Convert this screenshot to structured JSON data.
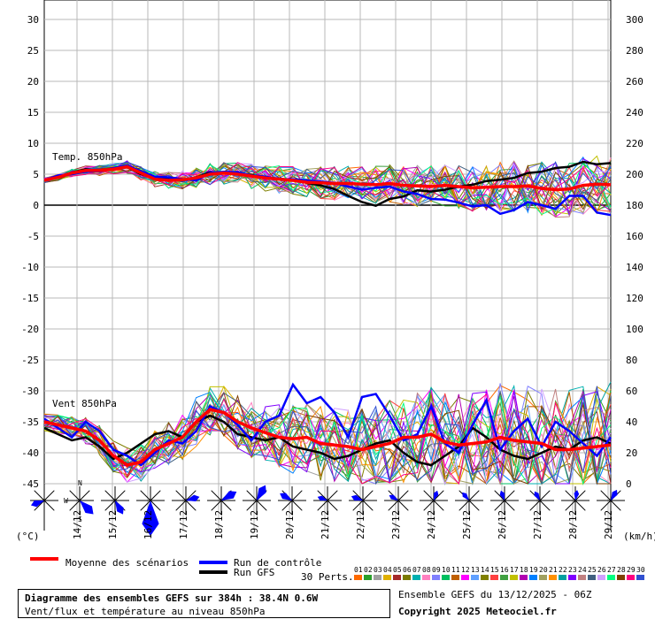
{
  "chart_data": {
    "type": "line",
    "title": "Diagramme des ensembles GEFS sur 384h : 38.4N 0.6W",
    "subtitle": "Vent/flux et température au niveau 850hPa",
    "y_left_unit": "(°C)",
    "y_right_unit": "(km/h)",
    "y_left_ticks": [
      30,
      25,
      20,
      15,
      10,
      5,
      0,
      -5,
      -10,
      -15,
      -20,
      -25,
      -30,
      -35,
      -40,
      -45
    ],
    "y_right_ticks": [
      300,
      280,
      260,
      240,
      220,
      200,
      180,
      160,
      140,
      120,
      100,
      80,
      60,
      40,
      20,
      0
    ],
    "ylim_left": [
      -45,
      30
    ],
    "ylim_right": [
      0,
      300
    ],
    "x_ticks": [
      "14/12",
      "15/12",
      "16/12",
      "17/12",
      "18/12",
      "19/12",
      "20/12",
      "21/12",
      "22/12",
      "23/12",
      "24/12",
      "25/12",
      "26/12",
      "27/12",
      "28/12",
      "29/12"
    ],
    "grid": true,
    "panel_labels": {
      "temp": "Temp. 850hPa",
      "wind": "Vent 850hPa"
    },
    "compass_labels": {
      "n": "N",
      "w": "W",
      "s": "S"
    },
    "series": [
      {
        "name": "Moyenne des scénarios",
        "role": "mean",
        "color": "#ff0000",
        "temp": [
          4.0,
          4.5,
          5.2,
          5.6,
          5.6,
          5.8,
          6.2,
          5.2,
          4.2,
          4.0,
          4.1,
          4.4,
          5.0,
          5.2,
          5.0,
          4.7,
          4.4,
          4.2,
          4.0,
          3.7,
          3.6,
          3.5,
          3.5,
          3.4,
          3.3,
          3.5,
          3.2,
          3.1,
          3.0,
          3.2,
          3.0,
          2.8,
          2.9,
          3.0,
          3.0,
          3.1,
          2.7,
          2.5,
          2.6,
          3.2,
          3.4,
          3.3
        ],
        "wind": [
          40,
          38,
          36,
          34,
          28,
          18,
          12,
          14,
          22,
          26,
          30,
          40,
          48,
          46,
          40,
          36,
          33,
          30,
          29,
          30,
          26,
          25,
          24,
          22,
          24,
          26,
          30,
          30,
          32,
          27,
          25,
          26,
          27,
          30,
          28,
          27,
          26,
          22,
          22,
          23,
          24,
          25
        ]
      },
      {
        "name": "Run de contrôle",
        "role": "control",
        "color": "#0000ff",
        "temp": [
          4.0,
          4.8,
          5.0,
          5.4,
          5.5,
          6.0,
          6.4,
          5.5,
          4.6,
          4.5,
          4.2,
          4.0,
          5.2,
          5.4,
          5.3,
          4.8,
          4.6,
          4.2,
          4.2,
          4.0,
          3.8,
          3.6,
          3.0,
          2.5,
          2.8,
          3.0,
          2.2,
          1.8,
          1.0,
          0.9,
          0.4,
          -0.2,
          0.0,
          -1.4,
          -0.8,
          0.5,
          0.0,
          -0.6,
          1.5,
          1.5,
          -1.2,
          -1.6
        ],
        "wind": [
          42,
          36,
          30,
          40,
          34,
          22,
          18,
          12,
          20,
          28,
          26,
          34,
          50,
          46,
          38,
          28,
          40,
          44,
          64,
          52,
          56,
          46,
          30,
          56,
          58,
          44,
          28,
          32,
          50,
          26,
          20,
          38,
          54,
          22,
          34,
          42,
          24,
          40,
          34,
          26,
          18,
          30
        ]
      },
      {
        "name": "Run GFS",
        "role": "gfs",
        "color": "#000000",
        "temp": [
          4.0,
          4.6,
          5.3,
          5.8,
          5.5,
          5.9,
          6.1,
          5.0,
          4.4,
          4.2,
          4.0,
          4.5,
          5.3,
          5.2,
          5.0,
          4.9,
          4.4,
          4.3,
          4.0,
          3.6,
          3.2,
          2.6,
          1.5,
          0.5,
          -0.1,
          1.0,
          1.4,
          2.4,
          2.2,
          2.5,
          3.0,
          3.3,
          3.9,
          4.1,
          4.4,
          5.2,
          5.4,
          6.0,
          6.2,
          7.0,
          6.6,
          6.8
        ],
        "wind": [
          36,
          32,
          28,
          30,
          24,
          16,
          20,
          26,
          32,
          34,
          30,
          40,
          44,
          40,
          32,
          30,
          28,
          30,
          24,
          22,
          20,
          16,
          18,
          22,
          26,
          28,
          20,
          14,
          12,
          18,
          24,
          36,
          30,
          22,
          18,
          16,
          20,
          24,
          22,
          28,
          30,
          26
        ]
      }
    ],
    "perturbations": {
      "label": "30 Perts.",
      "numbers": [
        "01",
        "02",
        "03",
        "04",
        "05",
        "06",
        "07",
        "08",
        "09",
        "10",
        "11",
        "12",
        "13",
        "14",
        "15",
        "16",
        "17",
        "18",
        "19",
        "20",
        "21",
        "22",
        "23",
        "24",
        "25",
        "26",
        "27",
        "28",
        "29",
        "30"
      ],
      "colors": [
        "#ff6a00",
        "#2aa02a",
        "#a0a0a0",
        "#e0b000",
        "#a52a2a",
        "#7a7a00",
        "#00b0b0",
        "#ff80c0",
        "#8080ff",
        "#00c060",
        "#c06000",
        "#ff00ff",
        "#60a0ff",
        "#808000",
        "#ff4040",
        "#40a040",
        "#c0c000",
        "#b000b0",
        "#0080ff",
        "#a0a060",
        "#ff9000",
        "#00a0a0",
        "#8000ff",
        "#c08080",
        "#406080",
        "#d0a0ff",
        "#00ff80",
        "#804000",
        "#ff0080",
        "#3050d0"
      ]
    },
    "wind_roses": [
      {
        "dir": 250,
        "len": 16
      },
      {
        "dir": 135,
        "len": 22
      },
      {
        "dir": 150,
        "len": 18
      },
      {
        "dir": 180,
        "len": 40
      },
      {
        "dir": 75,
        "len": 16
      },
      {
        "dir": 60,
        "len": 20
      },
      {
        "dir": 30,
        "len": 20
      },
      {
        "dir": 300,
        "len": 16
      },
      {
        "dir": 290,
        "len": 12
      },
      {
        "dir": 290,
        "len": 14
      },
      {
        "dir": 300,
        "len": 12
      },
      {
        "dir": 20,
        "len": 12
      },
      {
        "dir": 320,
        "len": 12
      },
      {
        "dir": 340,
        "len": 12
      },
      {
        "dir": 330,
        "len": 12
      },
      {
        "dir": 10,
        "len": 12
      },
      {
        "dir": 30,
        "len": 14
      }
    ]
  },
  "legend": {
    "mean": "Moyenne des scénarios",
    "control": "Run de contrôle",
    "gfs": "Run GFS",
    "perts": "30 Perts."
  },
  "footer": {
    "title": "Diagramme des ensembles GEFS sur 384h : 38.4N 0.6W",
    "subtitle": "Vent/flux et température au niveau 850hPa",
    "run": "Ensemble GEFS du 13/12/2025 - 06Z",
    "copyright": "Copyright 2025 Meteociel.fr"
  }
}
